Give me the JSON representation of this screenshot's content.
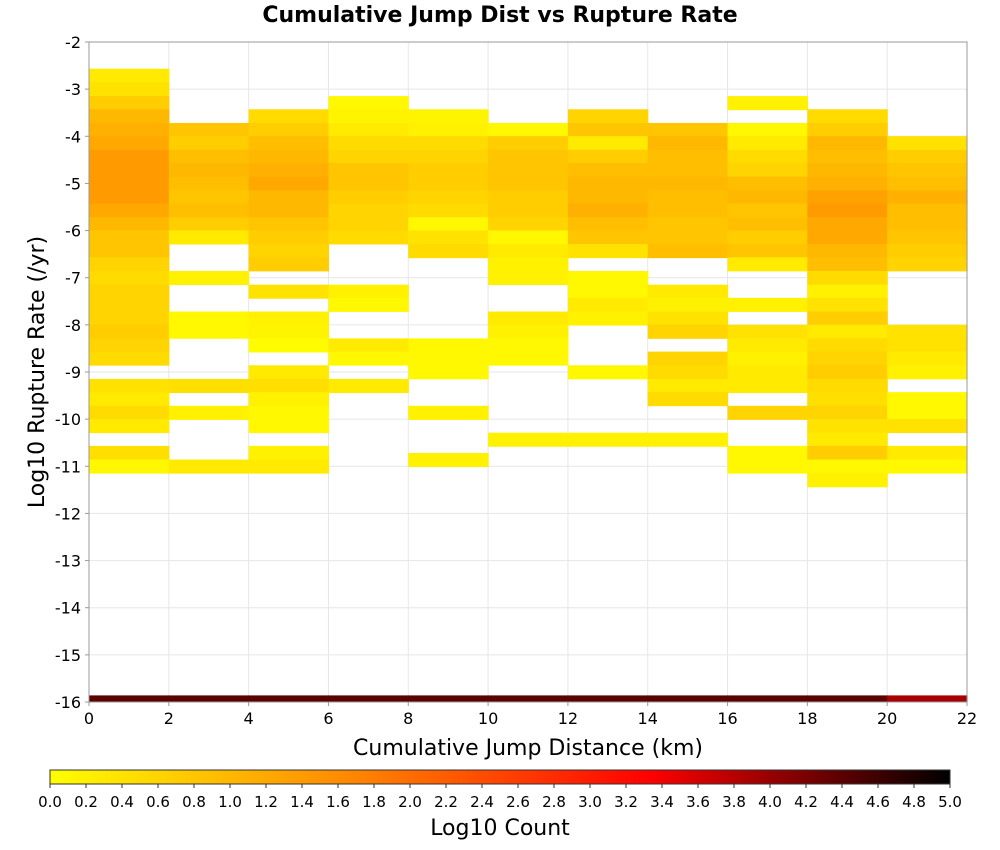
{
  "chart_data": {
    "type": "heatmap",
    "title": "Cumulative Jump Dist vs Rupture Rate",
    "xlabel": "Cumulative Jump Distance (km)",
    "ylabel": "Log10 Rupture Rate (/yr)",
    "xlim": [
      0,
      22
    ],
    "ylim": [
      -16,
      -2
    ],
    "x_ticks": [
      "0",
      "2",
      "4",
      "6",
      "8",
      "10",
      "12",
      "14",
      "16",
      "18",
      "20",
      "22"
    ],
    "y_ticks": [
      "-2",
      "-3",
      "-4",
      "-5",
      "-6",
      "-7",
      "-8",
      "-9",
      "-10",
      "-11",
      "-12",
      "-13",
      "-14",
      "-15",
      "-16"
    ],
    "x_bin_width": 2,
    "y_bin_height": 0.2857,
    "grid": true,
    "colorbar": {
      "label": "Log10 Count",
      "min": 0.0,
      "max": 5.0,
      "position": "bottom",
      "ticks": [
        "0.0",
        "0.2",
        "0.4",
        "0.6",
        "0.8",
        "1.0",
        "1.2",
        "1.4",
        "1.6",
        "1.8",
        "2.0",
        "2.2",
        "2.4",
        "2.6",
        "2.8",
        "3.0",
        "3.2",
        "3.4",
        "3.6",
        "3.8",
        "4.0",
        "4.2",
        "4.4",
        "4.6",
        "4.8",
        "5.0"
      ],
      "colors": [
        "#ffff00",
        "#ff8800",
        "#ff0000",
        "#000000"
      ]
    },
    "columns": [
      {
        "x": 0,
        "cells": [
          [
            -2.71,
            0.3
          ],
          [
            -3.0,
            0.4
          ],
          [
            -3.29,
            0.7
          ],
          [
            -3.57,
            1.0
          ],
          [
            -3.86,
            1.1
          ],
          [
            -4.14,
            1.2
          ],
          [
            -4.43,
            1.4
          ],
          [
            -4.71,
            1.4
          ],
          [
            -5.0,
            1.4
          ],
          [
            -5.29,
            1.4
          ],
          [
            -5.57,
            1.2
          ],
          [
            -5.86,
            1.0
          ],
          [
            -6.14,
            0.8
          ],
          [
            -6.43,
            0.8
          ],
          [
            -6.71,
            0.6
          ],
          [
            -7.0,
            0.5
          ],
          [
            -7.29,
            0.6
          ],
          [
            -7.57,
            0.6
          ],
          [
            -7.86,
            0.6
          ],
          [
            -8.14,
            0.7
          ],
          [
            -8.43,
            0.6
          ],
          [
            -8.71,
            0.5
          ],
          [
            -9.29,
            0.4
          ],
          [
            -9.57,
            0.3
          ],
          [
            -9.86,
            0.5
          ],
          [
            -10.14,
            0.3
          ],
          [
            -10.71,
            0.45
          ],
          [
            -11.0,
            0.1
          ]
        ]
      },
      {
        "x": 2,
        "cells": [
          [
            -3.86,
            0.8
          ],
          [
            -4.14,
            0.7
          ],
          [
            -4.43,
            0.9
          ],
          [
            -4.71,
            1.0
          ],
          [
            -5.0,
            0.9
          ],
          [
            -5.29,
            0.8
          ],
          [
            -5.57,
            0.9
          ],
          [
            -5.86,
            0.7
          ],
          [
            -6.14,
            0.3
          ],
          [
            -7.0,
            0.2
          ],
          [
            -7.86,
            0.1
          ],
          [
            -8.14,
            0.1
          ],
          [
            -9.29,
            0.45
          ],
          [
            -9.86,
            0.2
          ],
          [
            -11.0,
            0.3
          ]
        ]
      },
      {
        "x": 4,
        "cells": [
          [
            -3.57,
            0.5
          ],
          [
            -3.86,
            0.7
          ],
          [
            -4.14,
            0.9
          ],
          [
            -4.43,
            1.0
          ],
          [
            -4.71,
            1.1
          ],
          [
            -5.0,
            1.2
          ],
          [
            -5.29,
            1.0
          ],
          [
            -5.57,
            1.0
          ],
          [
            -5.86,
            0.8
          ],
          [
            -6.14,
            0.7
          ],
          [
            -6.43,
            0.6
          ],
          [
            -6.71,
            0.7
          ],
          [
            -7.29,
            0.4
          ],
          [
            -7.86,
            0.2
          ],
          [
            -8.14,
            0.15
          ],
          [
            -8.43,
            0.05
          ],
          [
            -9.0,
            0.3
          ],
          [
            -9.29,
            0.45
          ],
          [
            -9.57,
            0.2
          ],
          [
            -9.86,
            0.1
          ],
          [
            -10.14,
            0.1
          ],
          [
            -10.71,
            0.2
          ],
          [
            -11.0,
            0.3
          ]
        ]
      },
      {
        "x": 6,
        "cells": [
          [
            -3.29,
            0.1
          ],
          [
            -3.57,
            0.15
          ],
          [
            -3.86,
            0.3
          ],
          [
            -4.14,
            0.5
          ],
          [
            -4.43,
            0.6
          ],
          [
            -4.71,
            0.8
          ],
          [
            -5.0,
            0.8
          ],
          [
            -5.29,
            0.7
          ],
          [
            -5.57,
            0.6
          ],
          [
            -5.86,
            0.6
          ],
          [
            -6.14,
            0.5
          ],
          [
            -7.29,
            0.2
          ],
          [
            -7.57,
            0.1
          ],
          [
            -8.43,
            0.3
          ],
          [
            -8.71,
            0.1
          ],
          [
            -9.29,
            0.3
          ]
        ]
      },
      {
        "x": 8,
        "cells": [
          [
            -3.57,
            0.15
          ],
          [
            -3.86,
            0.2
          ],
          [
            -4.14,
            0.5
          ],
          [
            -4.43,
            0.6
          ],
          [
            -4.71,
            0.7
          ],
          [
            -5.0,
            0.7
          ],
          [
            -5.29,
            0.6
          ],
          [
            -5.57,
            0.5
          ],
          [
            -5.86,
            0.1
          ],
          [
            -6.14,
            0.4
          ],
          [
            -6.43,
            0.5
          ],
          [
            -8.43,
            0.1
          ],
          [
            -8.71,
            0.1
          ],
          [
            -9.0,
            0.1
          ],
          [
            -9.86,
            0.2
          ],
          [
            -10.86,
            0.2
          ]
        ]
      },
      {
        "x": 10,
        "cells": [
          [
            -3.86,
            0.1
          ],
          [
            -4.14,
            0.7
          ],
          [
            -4.43,
            0.8
          ],
          [
            -4.71,
            0.8
          ],
          [
            -5.0,
            0.8
          ],
          [
            -5.29,
            0.7
          ],
          [
            -5.57,
            0.7
          ],
          [
            -5.86,
            0.6
          ],
          [
            -6.14,
            0.1
          ],
          [
            -6.43,
            0.3
          ],
          [
            -6.71,
            0.2
          ],
          [
            -7.0,
            0.2
          ],
          [
            -7.86,
            0.3
          ],
          [
            -8.14,
            0.2
          ],
          [
            -8.43,
            0.1
          ],
          [
            -8.71,
            0.1
          ],
          [
            -10.43,
            0.2
          ]
        ]
      },
      {
        "x": 12,
        "cells": [
          [
            -3.57,
            0.6
          ],
          [
            -3.86,
            0.8
          ],
          [
            -4.14,
            0.3
          ],
          [
            -4.43,
            0.7
          ],
          [
            -4.71,
            0.9
          ],
          [
            -5.0,
            1.0
          ],
          [
            -5.29,
            1.0
          ],
          [
            -5.57,
            1.1
          ],
          [
            -5.86,
            0.9
          ],
          [
            -6.14,
            0.8
          ],
          [
            -6.43,
            0.4
          ],
          [
            -7.0,
            0.1
          ],
          [
            -7.29,
            0.1
          ],
          [
            -7.57,
            0.3
          ],
          [
            -7.86,
            0.2
          ],
          [
            -9.0,
            0.1
          ],
          [
            -10.43,
            0.2
          ]
        ]
      },
      {
        "x": 14,
        "cells": [
          [
            -3.86,
            0.8
          ],
          [
            -4.14,
            1.0
          ],
          [
            -4.43,
            0.9
          ],
          [
            -4.71,
            0.9
          ],
          [
            -5.0,
            1.0
          ],
          [
            -5.29,
            0.9
          ],
          [
            -5.57,
            0.9
          ],
          [
            -5.86,
            0.8
          ],
          [
            -6.14,
            0.8
          ],
          [
            -6.43,
            0.9
          ],
          [
            -7.29,
            0.3
          ],
          [
            -7.57,
            0.2
          ],
          [
            -7.86,
            0.4
          ],
          [
            -8.14,
            0.6
          ],
          [
            -8.71,
            0.6
          ],
          [
            -9.0,
            0.5
          ],
          [
            -9.29,
            0.3
          ],
          [
            -9.57,
            0.5
          ],
          [
            -10.43,
            0.2
          ]
        ]
      },
      {
        "x": 16,
        "cells": [
          [
            -3.29,
            0.2
          ],
          [
            -3.86,
            0.1
          ],
          [
            -4.14,
            0.3
          ],
          [
            -4.43,
            0.5
          ],
          [
            -4.71,
            0.6
          ],
          [
            -5.0,
            0.9
          ],
          [
            -5.29,
            1.0
          ],
          [
            -5.57,
            0.8
          ],
          [
            -5.86,
            0.9
          ],
          [
            -6.14,
            0.7
          ],
          [
            -6.43,
            0.8
          ],
          [
            -6.71,
            0.3
          ],
          [
            -7.57,
            0.2
          ],
          [
            -8.14,
            0.4
          ],
          [
            -8.43,
            0.3
          ],
          [
            -8.71,
            0.2
          ],
          [
            -9.0,
            0.3
          ],
          [
            -9.29,
            0.3
          ],
          [
            -9.86,
            0.6
          ],
          [
            -10.71,
            0.1
          ],
          [
            -11.0,
            0.1
          ]
        ]
      },
      {
        "x": 18,
        "cells": [
          [
            -3.57,
            0.5
          ],
          [
            -3.86,
            0.7
          ],
          [
            -4.14,
            1.0
          ],
          [
            -4.43,
            0.9
          ],
          [
            -4.71,
            1.0
          ],
          [
            -5.0,
            1.1
          ],
          [
            -5.29,
            1.3
          ],
          [
            -5.57,
            1.4
          ],
          [
            -5.86,
            1.2
          ],
          [
            -6.14,
            1.2
          ],
          [
            -6.43,
            1.0
          ],
          [
            -6.71,
            0.9
          ],
          [
            -7.0,
            0.5
          ],
          [
            -7.29,
            0.2
          ],
          [
            -7.57,
            0.4
          ],
          [
            -7.86,
            0.7
          ],
          [
            -8.14,
            0.3
          ],
          [
            -8.43,
            0.5
          ],
          [
            -8.71,
            0.6
          ],
          [
            -9.0,
            0.7
          ],
          [
            -9.29,
            0.5
          ],
          [
            -9.57,
            0.45
          ],
          [
            -9.86,
            0.6
          ],
          [
            -10.14,
            0.4
          ],
          [
            -10.43,
            0.3
          ],
          [
            -10.71,
            0.7
          ],
          [
            -11.0,
            0.1
          ],
          [
            -11.29,
            0.2
          ]
        ]
      },
      {
        "x": 20,
        "cells": [
          [
            -4.14,
            0.4
          ],
          [
            -4.43,
            0.7
          ],
          [
            -4.71,
            0.8
          ],
          [
            -5.0,
            0.9
          ],
          [
            -5.29,
            1.1
          ],
          [
            -5.57,
            0.9
          ],
          [
            -5.86,
            0.9
          ],
          [
            -6.14,
            0.8
          ],
          [
            -6.43,
            0.7
          ],
          [
            -6.71,
            0.6
          ],
          [
            -8.14,
            0.4
          ],
          [
            -8.43,
            0.4
          ],
          [
            -8.71,
            0.3
          ],
          [
            -9.0,
            0.2
          ],
          [
            -9.57,
            0.1
          ],
          [
            -9.86,
            0.1
          ],
          [
            -10.14,
            0.4
          ],
          [
            -10.71,
            0.3
          ],
          [
            -11.0,
            0.1
          ]
        ]
      }
    ],
    "baseline_band": {
      "y_range": [
        -16.0,
        -15.86
      ],
      "values": [
        4.4,
        4.4,
        4.4,
        4.4,
        4.4,
        4.4,
        4.4,
        4.4,
        4.4,
        4.4,
        3.9
      ]
    }
  }
}
